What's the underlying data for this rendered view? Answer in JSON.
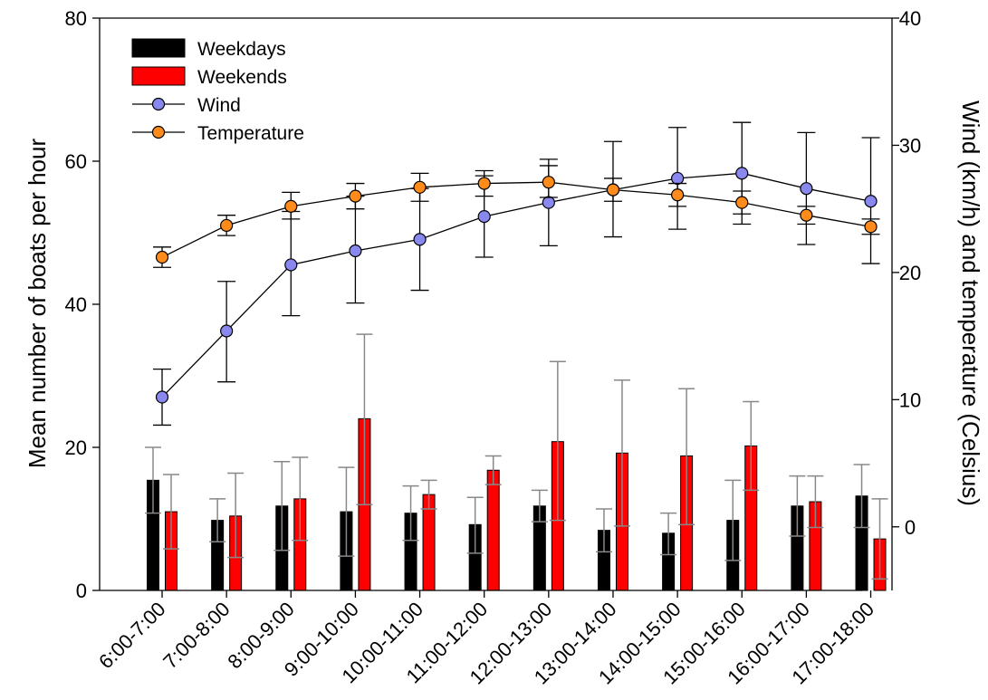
{
  "chart_data": {
    "type": "bar",
    "title": "",
    "xlabel": "",
    "ylabel": "Mean number of boats per hour",
    "ylabel_right": "Wind (km/h) and temperature (Celsius)",
    "ylim": [
      0,
      80
    ],
    "yticks": [
      0,
      20,
      40,
      60,
      80
    ],
    "ylim_right": [
      -5,
      40
    ],
    "yticks_right": [
      0,
      10,
      20,
      30,
      40
    ],
    "legend_position": "top-left",
    "categories": [
      "6:00-7:00",
      "7:00-8:00",
      "8:00-9:00",
      "9:00-10:00",
      "10:00-11:00",
      "11:00-12:00",
      "12:00-13:00",
      "13:00-14:00",
      "14:00-15:00",
      "15:00-16:00",
      "16:00-17:00",
      "17:00-18:00"
    ],
    "bar_series": [
      {
        "name": "Weekdays",
        "color": "#000000",
        "axis": "left",
        "values": [
          15.4,
          9.8,
          11.8,
          11.0,
          10.8,
          9.2,
          11.8,
          8.4,
          8.0,
          9.8,
          11.8,
          13.2
        ],
        "err_upper": [
          20.0,
          12.8,
          18.0,
          17.2,
          14.6,
          13.0,
          14.0,
          11.4,
          10.8,
          15.4,
          16.0,
          17.6
        ],
        "err_lower": [
          10.8,
          6.8,
          5.6,
          4.8,
          7.0,
          5.2,
          9.6,
          5.4,
          5.0,
          4.2,
          7.6,
          8.8
        ]
      },
      {
        "name": "Weekends",
        "color": "#ff0000",
        "axis": "left",
        "values": [
          11.0,
          10.4,
          12.8,
          24.0,
          13.4,
          16.8,
          20.8,
          19.2,
          18.8,
          20.2,
          12.4,
          7.2
        ],
        "err_upper": [
          16.2,
          16.4,
          18.6,
          35.8,
          15.4,
          18.8,
          32.0,
          29.4,
          28.2,
          26.4,
          16.0,
          12.8
        ],
        "err_lower": [
          5.8,
          4.6,
          7.0,
          12.0,
          11.4,
          14.8,
          9.8,
          9.0,
          9.2,
          14.0,
          8.8,
          1.6
        ]
      }
    ],
    "line_series": [
      {
        "name": "Wind",
        "color": "#8888ee",
        "axis": "right",
        "values": [
          10.2,
          15.4,
          20.6,
          21.7,
          22.6,
          24.4,
          25.5,
          26.5,
          27.4,
          27.8,
          26.6,
          25.6
        ],
        "err_upper": [
          12.4,
          19.3,
          24.8,
          26.0,
          26.6,
          27.6,
          28.9,
          30.3,
          31.4,
          31.8,
          31.0,
          30.6
        ],
        "err_lower": [
          8.0,
          11.4,
          16.6,
          17.6,
          18.6,
          21.2,
          22.1,
          22.8,
          23.4,
          23.8,
          22.2,
          20.7
        ]
      },
      {
        "name": "Temperature",
        "color": "#ff8c1a",
        "axis": "right",
        "values": [
          21.2,
          23.7,
          25.2,
          26.0,
          26.7,
          27.0,
          27.1,
          26.5,
          26.1,
          25.5,
          24.5,
          23.6
        ],
        "err_upper": [
          22.0,
          24.5,
          26.3,
          27.0,
          27.8,
          28.0,
          28.4,
          27.4,
          27.0,
          26.4,
          25.2,
          24.2
        ],
        "err_lower": [
          20.4,
          22.9,
          24.2,
          25.0,
          25.6,
          26.0,
          25.9,
          25.6,
          25.2,
          24.6,
          23.8,
          23.0
        ]
      }
    ],
    "legend": [
      "Weekdays",
      "Weekends",
      "Wind",
      "Temperature"
    ]
  }
}
